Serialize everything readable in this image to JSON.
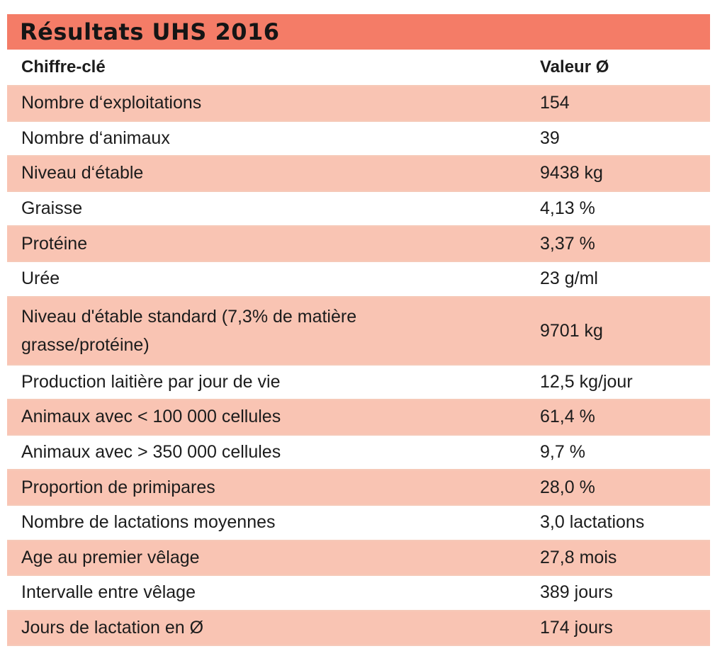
{
  "title": "Résultats UHS 2016",
  "header": {
    "key_label": "Chiffre-clé",
    "value_label": "Valeur Ø"
  },
  "rows": [
    {
      "key": "Nombre d‘exploitations",
      "value": "154"
    },
    {
      "key": "Nombre d‘animaux",
      "value": "39"
    },
    {
      "key": "Niveau d‘étable",
      "value": "9438 kg"
    },
    {
      "key": "Graisse",
      "value": "4,13 %"
    },
    {
      "key": "Protéine",
      "value": "3,37 %"
    },
    {
      "key": "Urée",
      "value": "23 g/ml"
    },
    {
      "key": "Niveau d'étable standard (7,3% de matière grasse/protéine)",
      "value": "9701 kg"
    },
    {
      "key": "Production laitière par jour de vie",
      "value": "12,5 kg/jour"
    },
    {
      "key": "Animaux avec < 100 000 cellules",
      "value": "61,4 %"
    },
    {
      "key": "Animaux avec > 350 000 cellules",
      "value": "9,7 %"
    },
    {
      "key": "Proportion de primipares",
      "value": "28,0 %"
    },
    {
      "key": "Nombre de lactations moyennes",
      "value": "3,0 lactations"
    },
    {
      "key": "Age au premier vêlage",
      "value": "27,8 mois"
    },
    {
      "key": "Intervalle entre vêlage",
      "value": "389 jours"
    },
    {
      "key": "Jours de lactation en Ø",
      "value": "174 jours"
    }
  ],
  "colors": {
    "title_bar": "#f47c67",
    "row_shade": "#f9c4b3",
    "divider": "#f6c9b8"
  }
}
